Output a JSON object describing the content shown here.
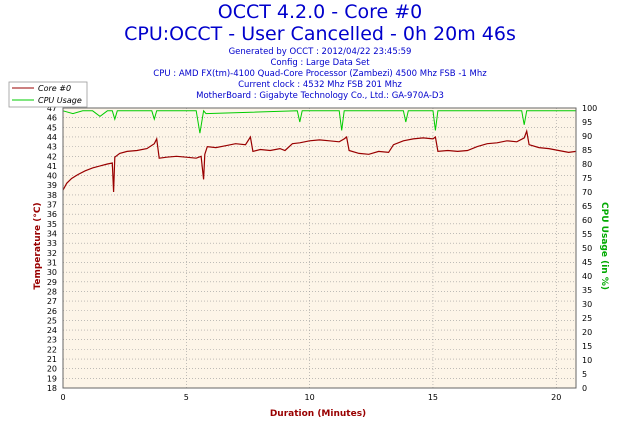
{
  "header": {
    "title": "OCCT 4.2.0 - Core #0",
    "subtitle": "CPU:OCCT - User Cancelled - 0h 20m 46s",
    "info": [
      "Generated by OCCT : 2012/04/22 23:45:59",
      "Config : Large Data Set",
      "CPU : AMD FX(tm)-4100 Quad-Core Processor (Zambezi) 4500 Mhz FSB -1 Mhz",
      "Current clock : 4532 Mhz FSB 201 Mhz",
      "MotherBoard : Gigabyte Technology Co., Ltd.: GA-970A-D3"
    ]
  },
  "colors": {
    "temperature": "#990000",
    "cpu_usage": "#00cc00",
    "plot_bg": "#fdf5e8",
    "grid": "#999999",
    "axis_label": "#990000",
    "cpu_label": "#00aa00"
  },
  "chart_data": {
    "type": "line",
    "title": "OCCT 4.2.0 - Core #0",
    "xlabel": "Duration (Minutes)",
    "ylabel_left": "Temperature (°C)",
    "ylabel_right": "CPU Usage (in %)",
    "xlim": [
      0,
      20.8
    ],
    "ylim_left": [
      18,
      47
    ],
    "ylim_right": [
      0,
      100
    ],
    "x_ticks": [
      0,
      5,
      10,
      15,
      20
    ],
    "y_ticks_left": [
      18,
      19,
      20,
      21,
      22,
      23,
      24,
      25,
      26,
      27,
      28,
      29,
      30,
      31,
      32,
      33,
      34,
      35,
      36,
      37,
      38,
      39,
      40,
      41,
      42,
      43,
      44,
      45,
      46,
      47
    ],
    "y_ticks_right": [
      0,
      5,
      10,
      15,
      20,
      25,
      30,
      35,
      40,
      45,
      50,
      55,
      60,
      65,
      70,
      75,
      80,
      85,
      90,
      95,
      100
    ],
    "grid": true,
    "legend_position": "top-left",
    "series": [
      {
        "name": "Core #0",
        "axis": "left",
        "points": [
          [
            0.0,
            38.5
          ],
          [
            0.15,
            39.2
          ],
          [
            0.35,
            39.7
          ],
          [
            0.6,
            40.1
          ],
          [
            0.9,
            40.5
          ],
          [
            1.2,
            40.8
          ],
          [
            1.5,
            41.0
          ],
          [
            1.8,
            41.2
          ],
          [
            2.0,
            41.3
          ],
          [
            2.05,
            38.3
          ],
          [
            2.1,
            41.9
          ],
          [
            2.3,
            42.3
          ],
          [
            2.6,
            42.5
          ],
          [
            3.0,
            42.6
          ],
          [
            3.4,
            42.8
          ],
          [
            3.7,
            43.3
          ],
          [
            3.8,
            43.8
          ],
          [
            3.9,
            41.8
          ],
          [
            4.2,
            41.9
          ],
          [
            4.6,
            42.0
          ],
          [
            5.0,
            41.9
          ],
          [
            5.4,
            41.8
          ],
          [
            5.6,
            42.0
          ],
          [
            5.7,
            39.6
          ],
          [
            5.75,
            42.2
          ],
          [
            5.85,
            43.0
          ],
          [
            6.2,
            42.9
          ],
          [
            6.6,
            43.1
          ],
          [
            7.0,
            43.3
          ],
          [
            7.4,
            43.2
          ],
          [
            7.6,
            44.0
          ],
          [
            7.7,
            42.5
          ],
          [
            8.0,
            42.7
          ],
          [
            8.4,
            42.6
          ],
          [
            8.8,
            42.8
          ],
          [
            9.0,
            42.6
          ],
          [
            9.3,
            43.3
          ],
          [
            9.6,
            43.4
          ],
          [
            10.0,
            43.6
          ],
          [
            10.4,
            43.7
          ],
          [
            10.8,
            43.6
          ],
          [
            11.2,
            43.5
          ],
          [
            11.4,
            43.8
          ],
          [
            11.5,
            44.0
          ],
          [
            11.6,
            42.6
          ],
          [
            12.0,
            42.3
          ],
          [
            12.4,
            42.2
          ],
          [
            12.8,
            42.5
          ],
          [
            13.2,
            42.4
          ],
          [
            13.4,
            43.2
          ],
          [
            13.8,
            43.6
          ],
          [
            14.2,
            43.8
          ],
          [
            14.6,
            43.9
          ],
          [
            15.0,
            43.8
          ],
          [
            15.1,
            44.0
          ],
          [
            15.2,
            42.5
          ],
          [
            15.6,
            42.6
          ],
          [
            16.0,
            42.5
          ],
          [
            16.4,
            42.6
          ],
          [
            16.8,
            43.0
          ],
          [
            17.2,
            43.3
          ],
          [
            17.6,
            43.4
          ],
          [
            18.0,
            43.6
          ],
          [
            18.4,
            43.5
          ],
          [
            18.7,
            43.9
          ],
          [
            18.8,
            44.6
          ],
          [
            18.9,
            43.2
          ],
          [
            19.3,
            42.9
          ],
          [
            19.7,
            42.8
          ],
          [
            20.1,
            42.6
          ],
          [
            20.5,
            42.4
          ],
          [
            20.8,
            42.5
          ]
        ]
      },
      {
        "name": "CPU Usage",
        "axis": "right",
        "points": [
          [
            0.0,
            99
          ],
          [
            0.4,
            98
          ],
          [
            0.8,
            99
          ],
          [
            1.2,
            99
          ],
          [
            1.5,
            97
          ],
          [
            1.8,
            99
          ],
          [
            2.0,
            99
          ],
          [
            2.1,
            96
          ],
          [
            2.2,
            99
          ],
          [
            3.6,
            99
          ],
          [
            3.7,
            96
          ],
          [
            3.8,
            99
          ],
          [
            5.4,
            99
          ],
          [
            5.55,
            91
          ],
          [
            5.7,
            99
          ],
          [
            5.8,
            98
          ],
          [
            9.5,
            99
          ],
          [
            9.6,
            95
          ],
          [
            9.7,
            99
          ],
          [
            11.2,
            99
          ],
          [
            11.3,
            92
          ],
          [
            11.4,
            99
          ],
          [
            13.8,
            99
          ],
          [
            13.9,
            95
          ],
          [
            14.0,
            99
          ],
          [
            15.0,
            99
          ],
          [
            15.1,
            92
          ],
          [
            15.2,
            99
          ],
          [
            18.6,
            99
          ],
          [
            18.7,
            94
          ],
          [
            18.8,
            99
          ],
          [
            20.8,
            99
          ]
        ]
      }
    ]
  }
}
